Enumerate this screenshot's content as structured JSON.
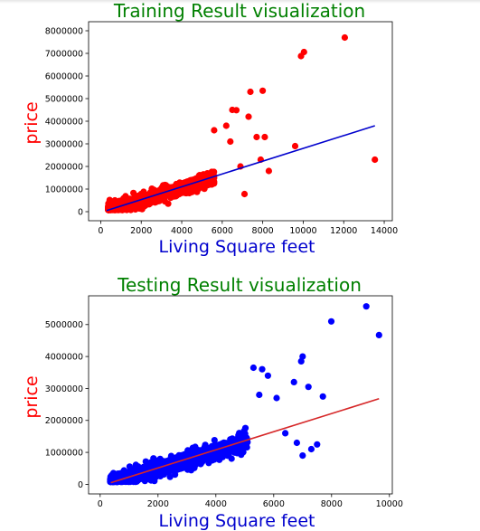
{
  "chart_data": [
    {
      "type": "scatter",
      "title": "Training Result visualization",
      "xlabel": "Living Square feet",
      "ylabel": "price",
      "title_color": "#008000",
      "xlabel_color": "#0000cd",
      "ylabel_color": "#ff0000",
      "point_color": "#ff0000",
      "line_color": "#0000cd",
      "xlim": [
        -600,
        14400
      ],
      "ylim": [
        -400000,
        8400000
      ],
      "xticks": [
        "0",
        "2000",
        "4000",
        "6000",
        "8000",
        "10000",
        "12000",
        "14000"
      ],
      "yticks": [
        "0",
        "1000000",
        "2000000",
        "3000000",
        "4000000",
        "5000000",
        "6000000",
        "7000000",
        "8000000"
      ],
      "grid": false,
      "regression_line": {
        "x": [
          290,
          13540
        ],
        "y": [
          50000,
          3800000
        ]
      },
      "outliers": [
        {
          "x": 12050,
          "y": 7700000
        },
        {
          "x": 10040,
          "y": 7060000
        },
        {
          "x": 9890,
          "y": 6880000
        },
        {
          "x": 7390,
          "y": 5300000
        },
        {
          "x": 8000,
          "y": 5350000
        },
        {
          "x": 6500,
          "y": 4500000
        },
        {
          "x": 6700,
          "y": 4490000
        },
        {
          "x": 7300,
          "y": 4200000
        },
        {
          "x": 13540,
          "y": 2300000
        },
        {
          "x": 7700,
          "y": 3300000
        },
        {
          "x": 8100,
          "y": 3300000
        },
        {
          "x": 9600,
          "y": 2900000
        },
        {
          "x": 6200,
          "y": 3800000
        },
        {
          "x": 7900,
          "y": 2300000
        },
        {
          "x": 7100,
          "y": 780000
        },
        {
          "x": 8300,
          "y": 1800000
        },
        {
          "x": 5600,
          "y": 3600000
        },
        {
          "x": 6400,
          "y": 3100000
        },
        {
          "x": 6900,
          "y": 2000000
        }
      ],
      "bulk_points": 2200,
      "cloud_x_range": [
        370,
        5600
      ],
      "cloud_slope": 280
    },
    {
      "type": "scatter",
      "title": "Testing Result visualization",
      "xlabel": "Living Square feet",
      "ylabel": "price",
      "title_color": "#008000",
      "xlabel_color": "#0000cd",
      "ylabel_color": "#ff0000",
      "point_color": "#0000ff",
      "line_color": "#d62728",
      "xlim": [
        -400,
        10100
      ],
      "ylim": [
        -300000,
        5900000
      ],
      "xticks": [
        "0",
        "2000",
        "4000",
        "6000",
        "8000",
        "10000"
      ],
      "yticks": [
        "0",
        "1000000",
        "2000000",
        "3000000",
        "4000000",
        "5000000"
      ],
      "grid": false,
      "regression_line": {
        "x": [
          370,
          9640
        ],
        "y": [
          50000,
          2680000
        ]
      },
      "outliers": [
        {
          "x": 9200,
          "y": 5570000
        },
        {
          "x": 9640,
          "y": 4670000
        },
        {
          "x": 7990,
          "y": 5100000
        },
        {
          "x": 7000,
          "y": 4000000
        },
        {
          "x": 6950,
          "y": 3850000
        },
        {
          "x": 5600,
          "y": 3600000
        },
        {
          "x": 5300,
          "y": 3650000
        },
        {
          "x": 6700,
          "y": 3200000
        },
        {
          "x": 7200,
          "y": 3050000
        },
        {
          "x": 7700,
          "y": 2750000
        },
        {
          "x": 7300,
          "y": 1100000
        },
        {
          "x": 7500,
          "y": 1250000
        },
        {
          "x": 7000,
          "y": 900000
        },
        {
          "x": 6100,
          "y": 2700000
        },
        {
          "x": 5800,
          "y": 3400000
        },
        {
          "x": 6400,
          "y": 1600000
        },
        {
          "x": 6800,
          "y": 1300000
        },
        {
          "x": 5500,
          "y": 2800000
        }
      ],
      "bulk_points": 1300,
      "cloud_x_range": [
        350,
        5100
      ],
      "cloud_slope": 280
    }
  ]
}
